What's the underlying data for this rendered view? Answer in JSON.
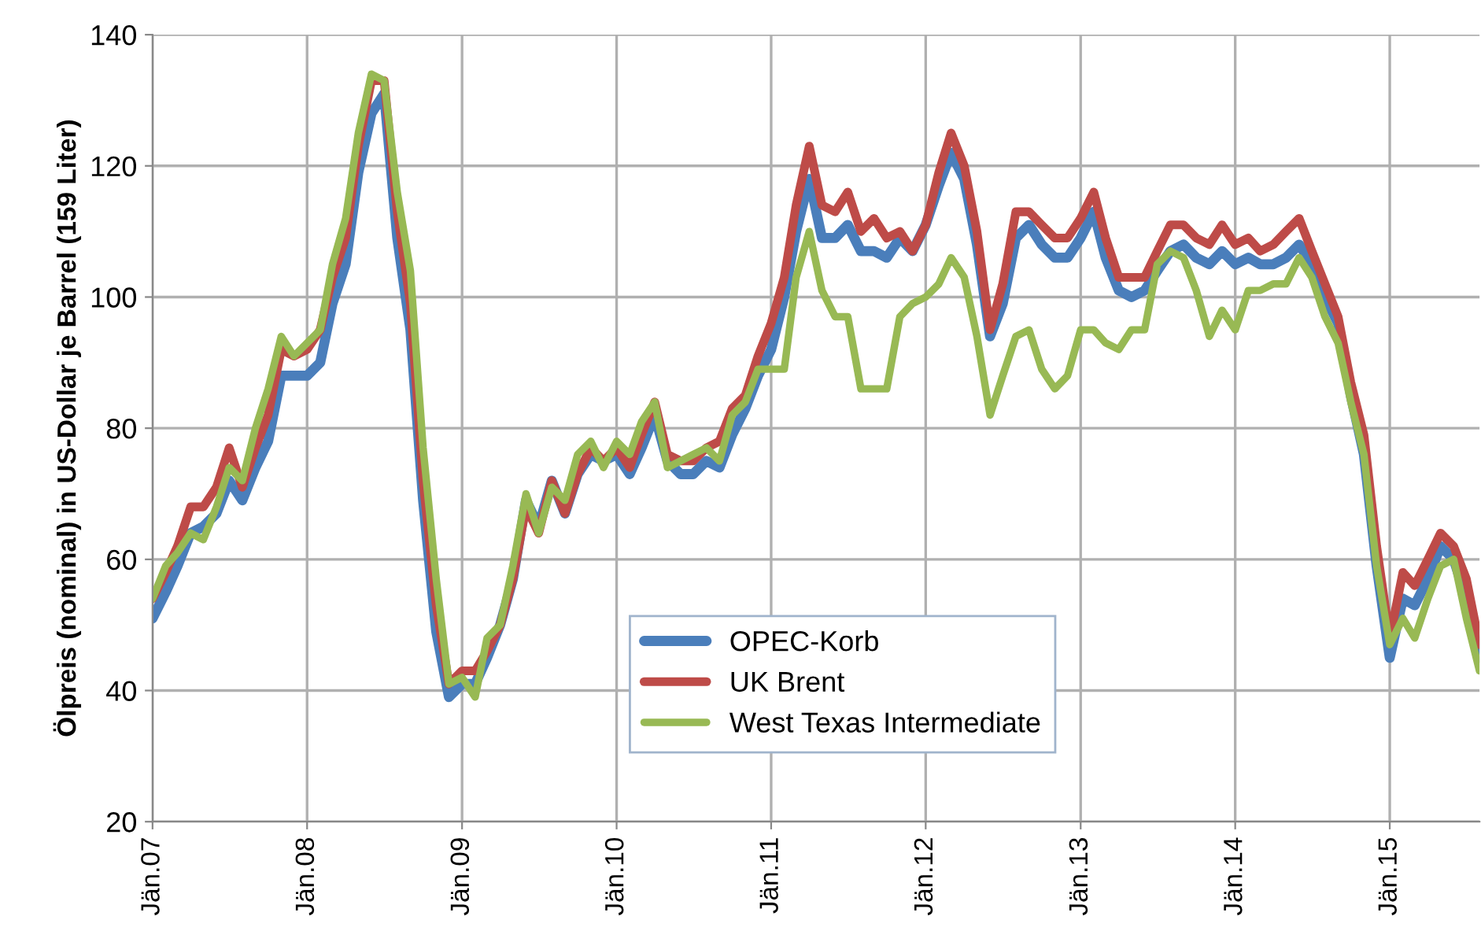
{
  "chart_data": {
    "type": "line",
    "ylabel": "Ölpreis (nominal) in US-Dollar je Barrel (159 Liter)",
    "x": [
      "2007-01",
      "2007-02",
      "2007-03",
      "2007-04",
      "2007-05",
      "2007-06",
      "2007-07",
      "2007-08",
      "2007-09",
      "2007-10",
      "2007-11",
      "2007-12",
      "2008-01",
      "2008-02",
      "2008-03",
      "2008-04",
      "2008-05",
      "2008-06",
      "2008-07",
      "2008-08",
      "2008-09",
      "2008-10",
      "2008-11",
      "2008-12",
      "2009-01",
      "2009-02",
      "2009-03",
      "2009-04",
      "2009-05",
      "2009-06",
      "2009-07",
      "2009-08",
      "2009-09",
      "2009-10",
      "2009-11",
      "2009-12",
      "2010-01",
      "2010-02",
      "2010-03",
      "2010-04",
      "2010-05",
      "2010-06",
      "2010-07",
      "2010-08",
      "2010-09",
      "2010-10",
      "2010-11",
      "2010-12",
      "2011-01",
      "2011-02",
      "2011-03",
      "2011-04",
      "2011-05",
      "2011-06",
      "2011-07",
      "2011-08",
      "2011-09",
      "2011-10",
      "2011-11",
      "2011-12",
      "2012-01",
      "2012-02",
      "2012-03",
      "2012-04",
      "2012-05",
      "2012-06",
      "2012-07",
      "2012-08",
      "2012-09",
      "2012-10",
      "2012-11",
      "2012-12",
      "2013-01",
      "2013-02",
      "2013-03",
      "2013-04",
      "2013-05",
      "2013-06",
      "2013-07",
      "2013-08",
      "2013-09",
      "2013-10",
      "2013-11",
      "2013-12",
      "2014-01",
      "2014-02",
      "2014-03",
      "2014-04",
      "2014-05",
      "2014-06",
      "2014-07",
      "2014-08",
      "2014-09",
      "2014-10",
      "2014-11",
      "2014-12",
      "2015-01",
      "2015-02",
      "2015-03",
      "2015-04",
      "2015-05",
      "2015-06",
      "2015-07",
      "2015-08"
    ],
    "series": [
      {
        "name": "OPEC-Korb",
        "color": "#4a7ebb",
        "values": [
          51,
          55,
          59,
          64,
          65,
          67,
          72,
          69,
          74,
          78,
          88,
          88,
          88,
          90,
          99,
          105,
          119,
          128,
          131,
          109,
          95,
          69,
          49,
          39,
          41,
          41,
          45,
          50,
          57,
          69,
          65,
          72,
          67,
          73,
          76,
          75,
          76,
          73,
          77,
          82,
          75,
          73,
          73,
          75,
          74,
          79,
          83,
          88,
          92,
          100,
          110,
          118,
          109,
          109,
          111,
          107,
          107,
          106,
          109,
          107,
          111,
          117,
          122,
          118,
          108,
          94,
          99,
          109,
          111,
          108,
          106,
          106,
          109,
          113,
          106,
          101,
          100,
          101,
          104,
          107,
          108,
          106,
          105,
          107,
          105,
          106,
          105,
          105,
          106,
          108,
          105,
          100,
          96,
          85,
          76,
          59,
          45,
          54,
          53,
          57,
          62,
          60,
          54,
          45
        ]
      },
      {
        "name": "UK Brent",
        "color": "#be4b48",
        "values": [
          54,
          58,
          62,
          68,
          68,
          71,
          77,
          71,
          77,
          82,
          92,
          91,
          92,
          95,
          103,
          109,
          123,
          133,
          133,
          113,
          99,
          72,
          53,
          41,
          43,
          43,
          46,
          50,
          57,
          68,
          64,
          72,
          67,
          73,
          77,
          75,
          77,
          74,
          79,
          84,
          76,
          75,
          75,
          77,
          78,
          83,
          85,
          91,
          96,
          103,
          114,
          123,
          114,
          113,
          116,
          110,
          112,
          109,
          110,
          107,
          111,
          119,
          125,
          120,
          110,
          95,
          102,
          113,
          113,
          111,
          109,
          109,
          112,
          116,
          109,
          103,
          103,
          103,
          107,
          111,
          111,
          109,
          108,
          111,
          108,
          109,
          107,
          108,
          110,
          112,
          107,
          102,
          97,
          87,
          79,
          62,
          48,
          58,
          56,
          60,
          64,
          62,
          57,
          47
        ]
      },
      {
        "name": "West Texas Intermediate",
        "color": "#98b954",
        "values": [
          54,
          59,
          61,
          64,
          63,
          68,
          74,
          72,
          80,
          86,
          94,
          91,
          93,
          95,
          105,
          112,
          125,
          134,
          133,
          116,
          104,
          77,
          57,
          41,
          42,
          39,
          48,
          50,
          59,
          70,
          64,
          71,
          69,
          76,
          78,
          74,
          78,
          76,
          81,
          84,
          74,
          75,
          76,
          77,
          75,
          82,
          84,
          89,
          89,
          89,
          103,
          110,
          101,
          97,
          97,
          86,
          86,
          86,
          97,
          99,
          100,
          102,
          106,
          103,
          94,
          82,
          88,
          94,
          95,
          89,
          86,
          88,
          95,
          95,
          93,
          92,
          95,
          95,
          105,
          107,
          106,
          101,
          94,
          98,
          95,
          101,
          101,
          102,
          102,
          106,
          103,
          97,
          93,
          84,
          76,
          59,
          47,
          51,
          48,
          54,
          59,
          60,
          51,
          43
        ]
      }
    ],
    "xlim": [
      "2007-01",
      "2015-08"
    ],
    "xticks": [
      {
        "value": "2007-01",
        "label": "Jän.07"
      },
      {
        "value": "2008-01",
        "label": "Jän.08"
      },
      {
        "value": "2009-01",
        "label": "Jän.09"
      },
      {
        "value": "2010-01",
        "label": "Jän.10"
      },
      {
        "value": "2011-01",
        "label": "Jän.11"
      },
      {
        "value": "2012-01",
        "label": "Jän.12"
      },
      {
        "value": "2013-01",
        "label": "Jän.13"
      },
      {
        "value": "2014-01",
        "label": "Jän.14"
      },
      {
        "value": "2015-01",
        "label": "Jän.15"
      }
    ],
    "ylim": [
      20,
      140
    ],
    "yticks": [
      20,
      40,
      60,
      80,
      100,
      120,
      140
    ],
    "grid": true,
    "legend": "bottom",
    "marker": "none",
    "line_style": "solid"
  }
}
